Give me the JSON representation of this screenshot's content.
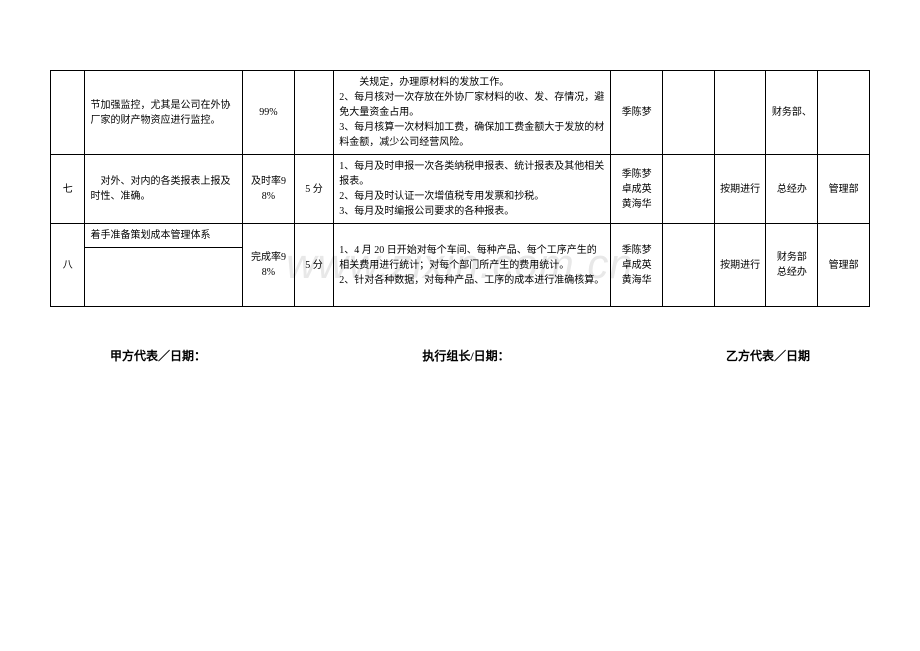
{
  "watermark": "www.zixin.com.cn",
  "table": {
    "rows": [
      {
        "num": "",
        "task": "节加强监控，尤其是公司在外协厂家的财产物资应进行监控。",
        "rate": "99%",
        "score": "",
        "actions": "　　关规定，办理原材料的发放工作。\n2、每月核对一次存放在外协厂家材料的收、发、存情况，避免大量资金占用。\n3、每月核算一次材料加工费，确保加工费金额大于发放的材料金额，减少公司经营风险。",
        "person": "季陈梦",
        "month": "",
        "report": "",
        "dept": "财务部、",
        "dept2": ""
      },
      {
        "num": "七",
        "task": "　对外、对内的各类报表上报及时性、准确。",
        "rate": "及时率98%",
        "score": "5 分",
        "actions": "1、每月及时申报一次各类纳税申报表、统计报表及其他相关报表。\n2、每月及时认证一次增值税专用发票和抄税。\n3、每月及时编报公司要求的各种报表。",
        "person": "季陈梦\n卓成英\n黄海华",
        "month": "",
        "report": "按期进行",
        "dept": "总经办",
        "dept2": "管理部"
      },
      {
        "num": "八",
        "task": "着手准备策划成本管理体系",
        "rate": "完成率98%",
        "score": "5 分",
        "actions": "1、4 月 20 日开始对每个车间、每种产品、每个工序产生的相关费用进行统计；对每个部门所产生的费用统计。\n2、针对各种数据，对每种产品、工序的成本进行准确核算。",
        "person": "季陈梦\n卓成英\n黄海华",
        "month": "",
        "report": "按期进行",
        "dept": "财务部\n总经办",
        "dept2": "管理部"
      }
    ]
  },
  "signatures": {
    "left": "甲方代表／日期：",
    "middle": "执行组长/日期：",
    "right": "乙方代表／日期"
  }
}
